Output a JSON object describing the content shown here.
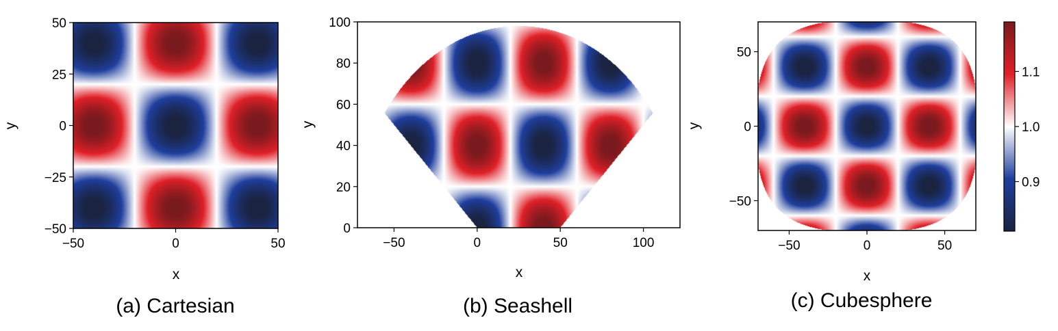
{
  "colors": {
    "low": "#1a2340",
    "blue": "#1f3f9e",
    "mid": "#ffffff",
    "red": "#e02028",
    "high": "#7a1a1e"
  },
  "chart_data": [
    {
      "type": "heatmap",
      "caption": "(a) Cartesian",
      "xlabel": "x",
      "ylabel": "y",
      "xlim": [
        -50,
        50
      ],
      "ylim": [
        -50,
        50
      ],
      "xticks": [
        "−50",
        "0",
        "50"
      ],
      "xtick_values": [
        -50,
        0,
        50
      ],
      "yticks": [
        "50",
        "25",
        "0",
        "−25",
        "−50"
      ],
      "ytick_values": [
        50,
        25,
        0,
        -25,
        -50
      ],
      "domain": "square",
      "period": 80,
      "phase_x": 40,
      "phase_y": 40,
      "amplitude": 0.2,
      "offset": 1.0
    },
    {
      "type": "heatmap",
      "caption": "(b) Seashell",
      "xlabel": "x",
      "ylabel": "y",
      "xlim": [
        -72,
        122
      ],
      "ylim": [
        0,
        100
      ],
      "xticks": [
        "−50",
        "0",
        "50",
        "100"
      ],
      "xtick_values": [
        -50,
        0,
        50,
        100
      ],
      "yticks": [
        "100",
        "80",
        "60",
        "40",
        "20",
        "0"
      ],
      "ytick_values": [
        100,
        80,
        60,
        40,
        20,
        0
      ],
      "domain": "annular-sector",
      "sector_center": [
        25,
        0
      ],
      "sector_radius_inner": [
        0,
        25
      ],
      "sector_radius_outer": 98,
      "sector_half_angle_deg": 45,
      "period": 80,
      "phase_x": 40,
      "phase_y": 40,
      "amplitude": 0.2,
      "offset": 1.0
    },
    {
      "type": "heatmap",
      "caption": "(c) Cubesphere",
      "xlabel": "x",
      "ylabel": "y",
      "xlim": [
        -70,
        70
      ],
      "ylim": [
        -70,
        70
      ],
      "xticks": [
        "−50",
        "0",
        "50"
      ],
      "xtick_values": [
        -50,
        0,
        50
      ],
      "yticks": [
        "50",
        "0",
        "−50"
      ],
      "ytick_values": [
        50,
        0,
        -50
      ],
      "domain": "superellipse",
      "superellipse_radius": 71,
      "superellipse_exponent": 3,
      "period": 80,
      "phase_x": 40,
      "phase_y": 40,
      "amplitude": 0.2,
      "offset": 1.0
    }
  ],
  "colorbar": {
    "vmin": 0.81,
    "vmax": 1.19,
    "ticks": [
      "1.1",
      "1.0",
      "0.9"
    ],
    "tick_values": [
      1.1,
      1.0,
      0.9
    ]
  }
}
